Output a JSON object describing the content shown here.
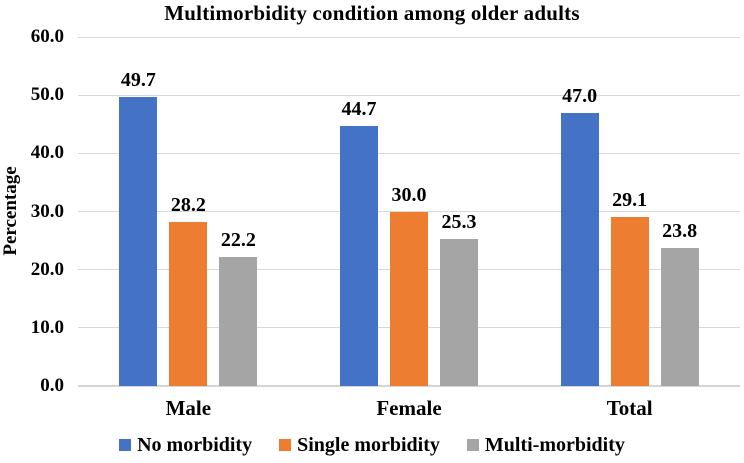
{
  "chart_data": {
    "type": "bar",
    "title": "Multimorbidity condition among older adults",
    "categories": [
      "Male",
      "Female",
      "Total"
    ],
    "series": [
      {
        "name": "No morbidity",
        "color": "#4472C4",
        "values": [
          49.7,
          44.7,
          47.0
        ]
      },
      {
        "name": "Single morbidity",
        "color": "#ED7D31",
        "values": [
          28.2,
          30.0,
          29.1
        ]
      },
      {
        "name": "Multi-morbidity",
        "color": "#A5A5A5",
        "values": [
          22.2,
          25.3,
          23.8
        ]
      }
    ],
    "xlabel": "",
    "ylabel": "Percentage",
    "ylim": [
      0,
      60
    ],
    "ytick_step": 10,
    "ytick_labels": [
      "0.0",
      "10.0",
      "20.0",
      "30.0",
      "40.0",
      "50.0",
      "60.0"
    ],
    "value_label_decimals": 1,
    "grid": true,
    "legend_position": "bottom"
  },
  "colors": {
    "background": "#ffffff",
    "gridline": "#d9d9d9",
    "axis_line": "#d5d5d5",
    "text": "#000000"
  }
}
